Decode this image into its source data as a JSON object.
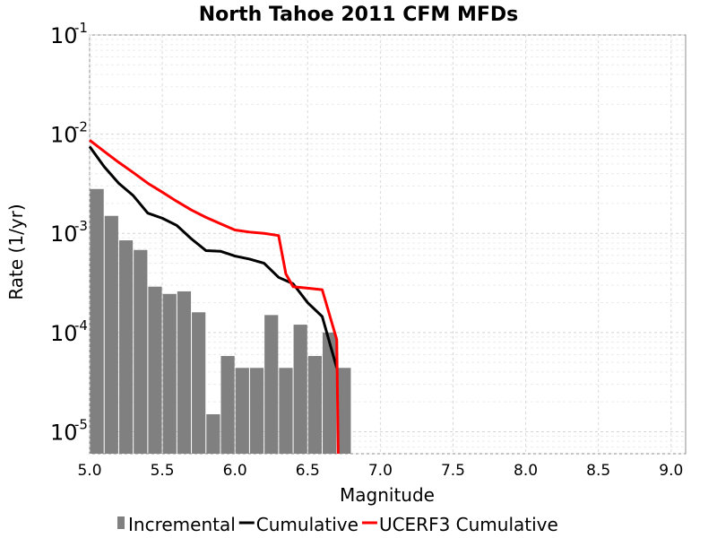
{
  "chart_data": {
    "type": "bar+line",
    "title": "North Tahoe 2011 CFM MFDs",
    "xlabel": "Magnitude",
    "ylabel": "Rate (1/yr)",
    "xlim": [
      5.0,
      9.1
    ],
    "ylim": [
      6e-06,
      0.1
    ],
    "yscale": "log",
    "grid": true,
    "legend_placement": "bottom",
    "x_ticks": [
      "5.0",
      "5.5",
      "6.0",
      "6.5",
      "7.0",
      "7.5",
      "8.0",
      "8.5",
      "9.0"
    ],
    "x_tick_values": [
      5.0,
      5.5,
      6.0,
      6.5,
      7.0,
      7.5,
      8.0,
      8.5,
      9.0
    ],
    "y_ticks": [
      {
        "value": 1e-05,
        "base": "10",
        "exp": "-5"
      },
      {
        "value": 0.0001,
        "base": "10",
        "exp": "-4"
      },
      {
        "value": 0.001,
        "base": "10",
        "exp": "-3"
      },
      {
        "value": 0.01,
        "base": "10",
        "exp": "-2"
      },
      {
        "value": 0.1,
        "base": "10",
        "exp": "-1"
      }
    ],
    "series": [
      {
        "name": "Incremental",
        "type": "bar",
        "color": "#808080",
        "bin_width": 0.1,
        "x": [
          5.05,
          5.15,
          5.25,
          5.35,
          5.45,
          5.55,
          5.65,
          5.75,
          5.85,
          5.95,
          6.05,
          6.15,
          6.25,
          6.35,
          6.45,
          6.55,
          6.65,
          6.75
        ],
        "values": [
          0.0028,
          0.0015,
          0.00085,
          0.00068,
          0.00029,
          0.000245,
          0.00026,
          0.00016,
          1.5e-05,
          5.8e-05,
          4.4e-05,
          4.4e-05,
          0.00015,
          4.4e-05,
          0.00012,
          5.8e-05,
          0.0001,
          4.4e-05
        ]
      },
      {
        "name": "Cumulative",
        "type": "line",
        "color": "#000000",
        "x": [
          5.0,
          5.1,
          5.2,
          5.3,
          5.4,
          5.5,
          5.6,
          5.7,
          5.8,
          5.9,
          6.0,
          6.1,
          6.2,
          6.3,
          6.4,
          6.5,
          6.6,
          6.7
        ],
        "values": [
          0.0075,
          0.0047,
          0.0032,
          0.0024,
          0.0016,
          0.00142,
          0.0012,
          0.00088,
          0.00067,
          0.00066,
          0.00059,
          0.00055,
          0.0005,
          0.00036,
          0.00031,
          0.0002,
          0.000145,
          4.4e-05
        ]
      },
      {
        "name": "UCERF3 Cumulative",
        "type": "line",
        "color": "#ff0000",
        "x": [
          5.0,
          5.1,
          5.2,
          5.3,
          5.4,
          5.5,
          5.6,
          5.7,
          5.8,
          5.9,
          6.0,
          6.1,
          6.2,
          6.3,
          6.35,
          6.4,
          6.5,
          6.6,
          6.7,
          6.71
        ],
        "values": [
          0.0087,
          0.0067,
          0.0052,
          0.0041,
          0.0032,
          0.0026,
          0.0021,
          0.00172,
          0.00145,
          0.00125,
          0.00108,
          0.00103,
          0.001,
          0.00095,
          0.00039,
          0.00029,
          0.00028,
          0.00027,
          8.5e-05,
          6e-06
        ]
      }
    ]
  }
}
